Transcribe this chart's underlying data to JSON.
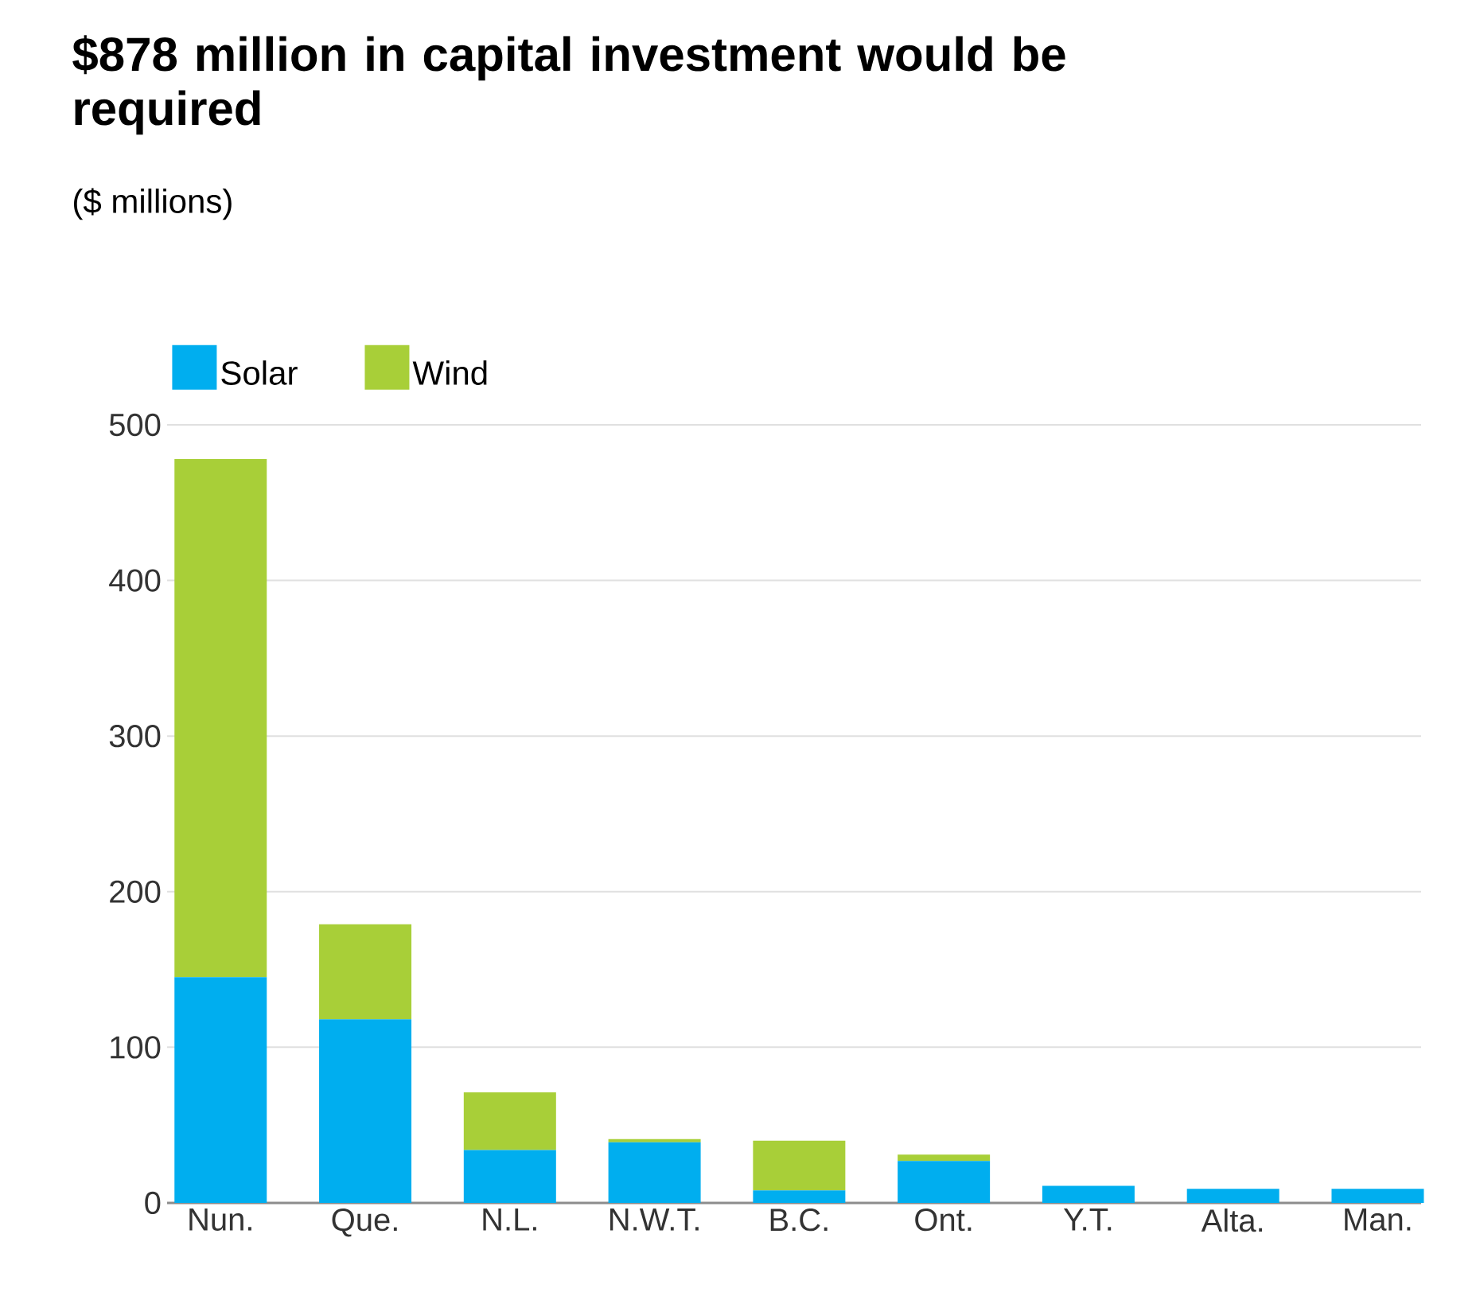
{
  "chart_data": {
    "type": "bar",
    "title": "$878 million in capital investment would be required",
    "subtitle": "($ millions)",
    "categories": [
      "Nun.",
      "Que.",
      "N.L.",
      "N.W.T.",
      "B.C.",
      "Ont.",
      "Y.T.",
      "Alta.",
      "Man."
    ],
    "series": [
      {
        "name": "Solar",
        "color": "#00aeef",
        "values": [
          145,
          118,
          34,
          39,
          8,
          27,
          11,
          9,
          9
        ]
      },
      {
        "name": "Wind",
        "color": "#a8cf38",
        "values": [
          333,
          61,
          37,
          2,
          32,
          4,
          0,
          0,
          0
        ]
      }
    ],
    "stacked": true,
    "ylim": [
      0,
      500
    ],
    "yticks": [
      0,
      100,
      200,
      300,
      400,
      500
    ],
    "grid": "y",
    "legend": "top left"
  }
}
